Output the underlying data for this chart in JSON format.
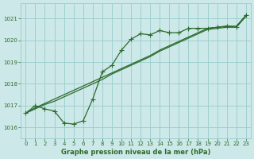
{
  "title": "Graphe pression niveau de la mer (hPa)",
  "bg_color": "#cce8e8",
  "grid_color": "#99cccc",
  "line_color": "#2d6b2d",
  "xlim": [
    -0.5,
    23.5
  ],
  "ylim": [
    1015.5,
    1021.7
  ],
  "yticks": [
    1016,
    1017,
    1018,
    1019,
    1020,
    1021
  ],
  "xticks": [
    0,
    1,
    2,
    3,
    4,
    5,
    6,
    7,
    8,
    9,
    10,
    11,
    12,
    13,
    14,
    15,
    16,
    17,
    18,
    19,
    20,
    21,
    22,
    23
  ],
  "line_wavy": [
    [
      0,
      1016.65
    ],
    [
      1,
      1017.0
    ],
    [
      2,
      1016.85
    ],
    [
      3,
      1016.75
    ],
    [
      4,
      1016.2
    ],
    [
      5,
      1016.15
    ],
    [
      6,
      1016.3
    ],
    [
      7,
      1017.3
    ],
    [
      8,
      1018.55
    ],
    [
      9,
      1018.85
    ],
    [
      10,
      1019.55
    ],
    [
      11,
      1020.05
    ],
    [
      12,
      1020.3
    ],
    [
      13,
      1020.25
    ],
    [
      14,
      1020.45
    ],
    [
      15,
      1020.35
    ],
    [
      16,
      1020.35
    ],
    [
      17,
      1020.55
    ],
    [
      18,
      1020.55
    ],
    [
      19,
      1020.55
    ],
    [
      20,
      1020.6
    ],
    [
      21,
      1020.65
    ],
    [
      22,
      1020.6
    ],
    [
      23,
      1021.15
    ]
  ],
  "line_smooth": [
    [
      0,
      1016.65
    ],
    [
      1,
      1016.9
    ],
    [
      2,
      1017.1
    ],
    [
      3,
      1017.3
    ],
    [
      4,
      1017.5
    ],
    [
      5,
      1017.7
    ],
    [
      6,
      1017.9
    ],
    [
      7,
      1018.1
    ],
    [
      8,
      1018.3
    ],
    [
      9,
      1018.5
    ],
    [
      10,
      1018.7
    ],
    [
      11,
      1018.9
    ],
    [
      12,
      1019.1
    ],
    [
      13,
      1019.3
    ],
    [
      14,
      1019.55
    ],
    [
      15,
      1019.75
    ],
    [
      16,
      1019.95
    ],
    [
      17,
      1020.15
    ],
    [
      18,
      1020.35
    ],
    [
      19,
      1020.55
    ],
    [
      20,
      1020.6
    ],
    [
      21,
      1020.65
    ],
    [
      22,
      1020.65
    ],
    [
      23,
      1021.15
    ]
  ],
  "line_mid": [
    [
      0,
      1016.65
    ],
    [
      1,
      1016.85
    ],
    [
      2,
      1017.05
    ],
    [
      3,
      1017.2
    ],
    [
      4,
      1017.4
    ],
    [
      5,
      1017.6
    ],
    [
      6,
      1017.8
    ],
    [
      7,
      1018.0
    ],
    [
      8,
      1018.2
    ],
    [
      9,
      1018.45
    ],
    [
      10,
      1018.65
    ],
    [
      11,
      1018.85
    ],
    [
      12,
      1019.05
    ],
    [
      13,
      1019.25
    ],
    [
      14,
      1019.5
    ],
    [
      15,
      1019.7
    ],
    [
      16,
      1019.9
    ],
    [
      17,
      1020.1
    ],
    [
      18,
      1020.3
    ],
    [
      19,
      1020.5
    ],
    [
      20,
      1020.55
    ],
    [
      21,
      1020.6
    ],
    [
      22,
      1020.6
    ],
    [
      23,
      1021.1
    ]
  ]
}
